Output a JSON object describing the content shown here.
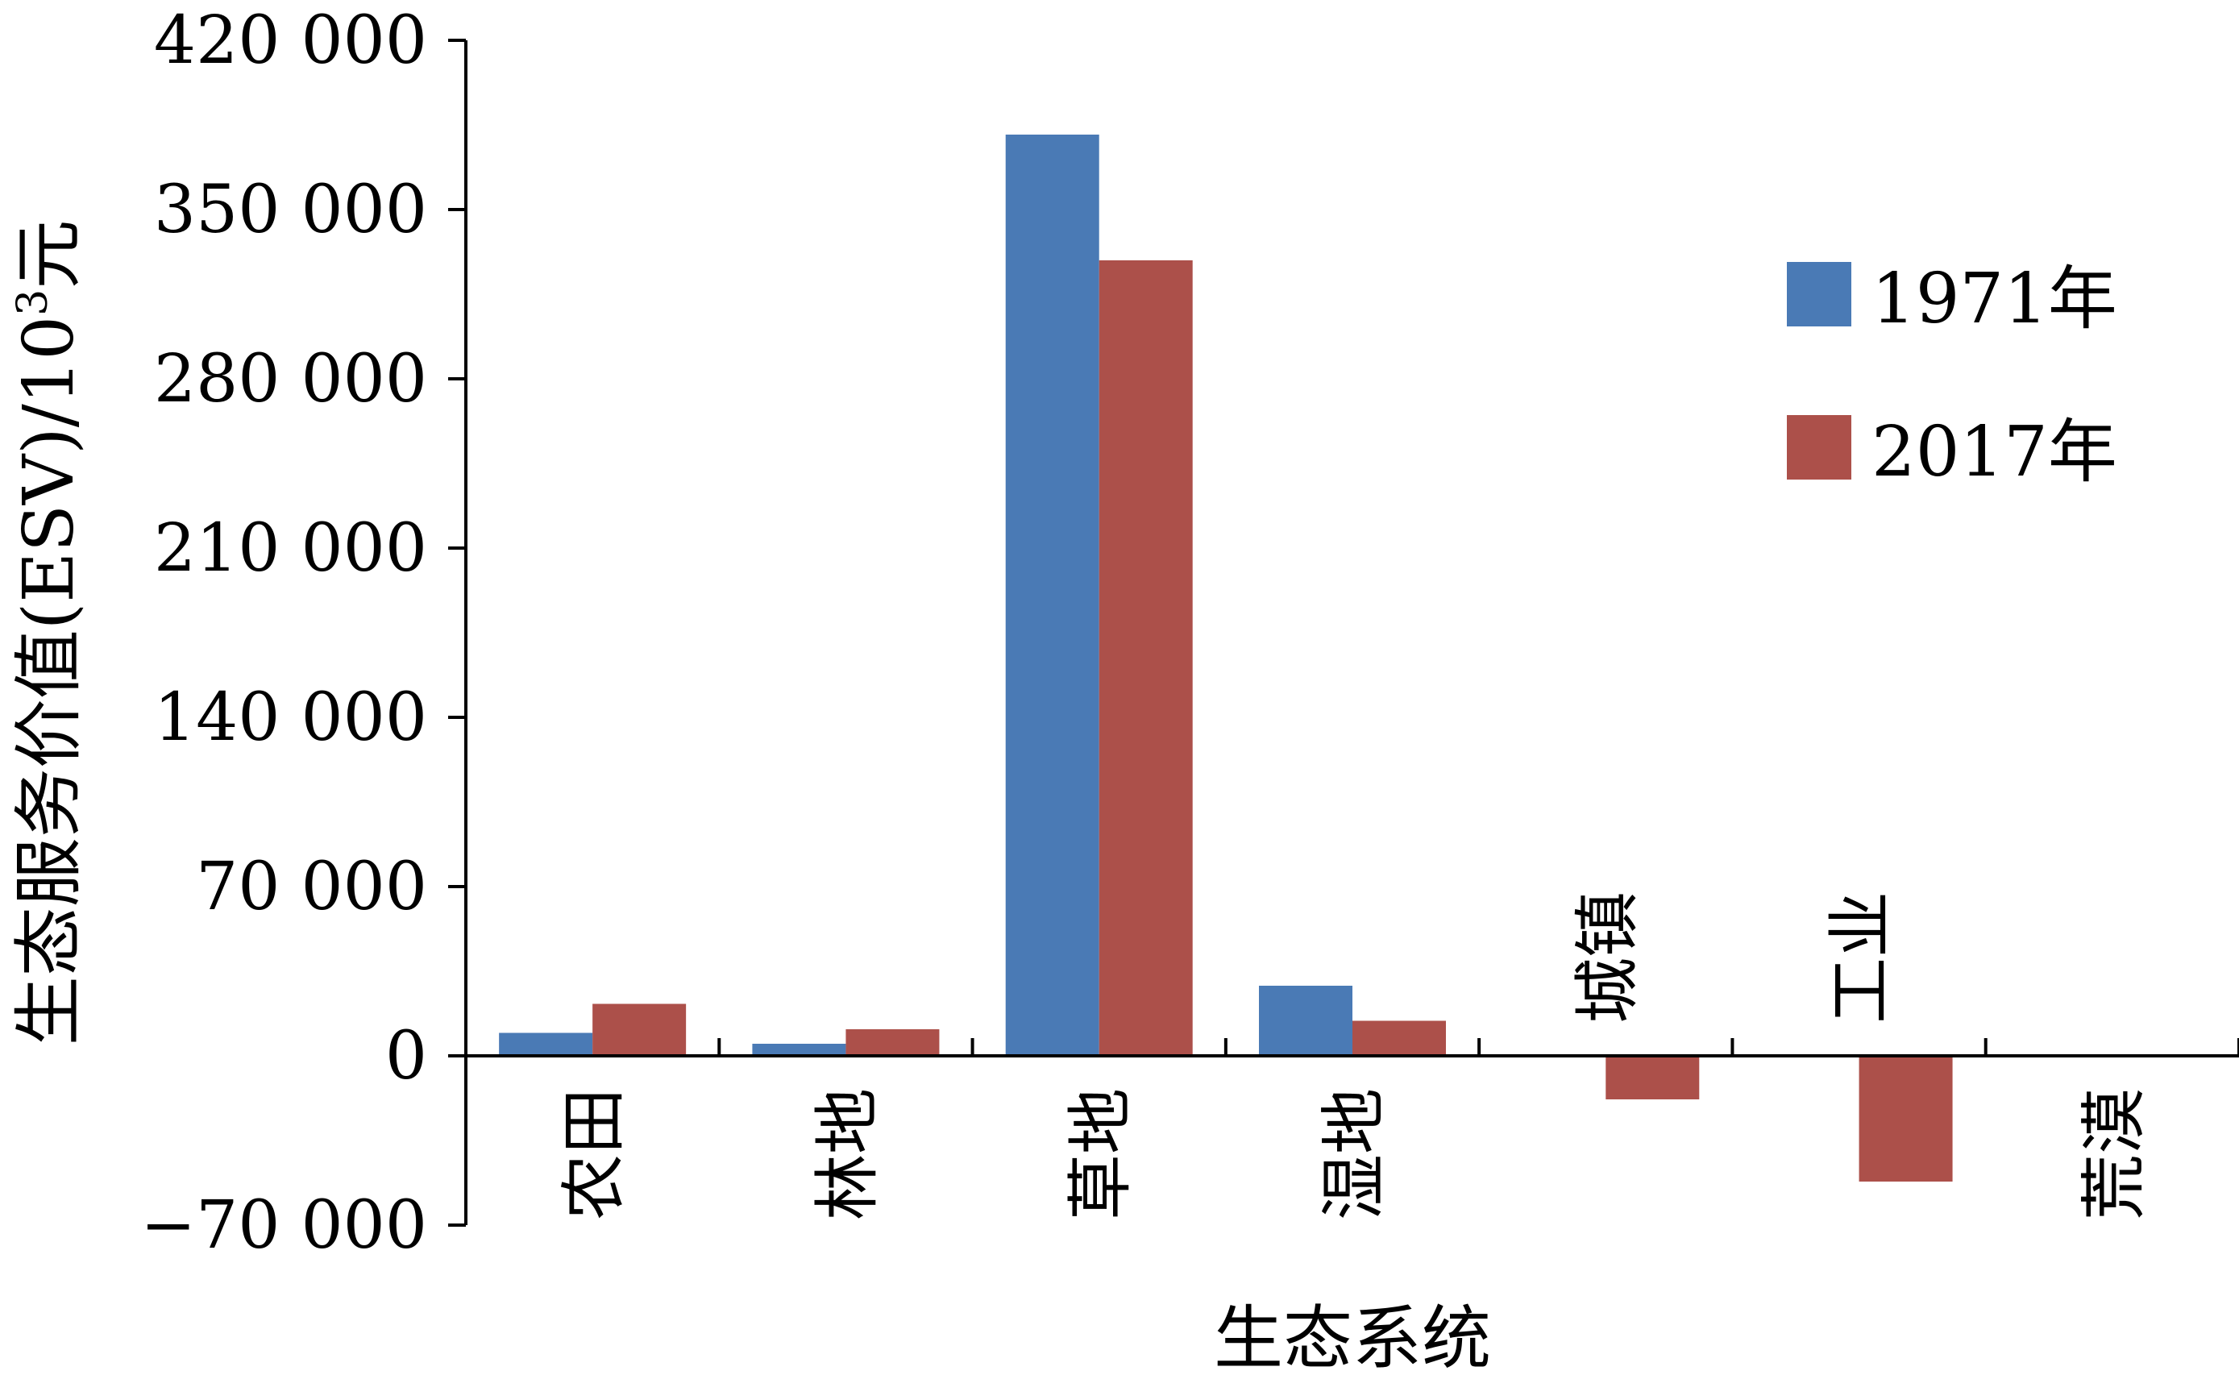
{
  "chart_data": {
    "type": "bar",
    "title": "",
    "xlabel": "生态系统",
    "ylabel": "生态服务价值(ESV)/10³元",
    "ylabel_parts": {
      "main": "生态服务价值(ESV)/10",
      "sup": "3",
      "unit": "元"
    },
    "ylim": [
      -70000,
      420000
    ],
    "yticks": [
      -70000,
      0,
      70000,
      140000,
      210000,
      280000,
      350000,
      420000
    ],
    "ytick_labels": [
      "−70 000",
      "0",
      "70 000",
      "140 000",
      "210 000",
      "280 000",
      "350 000",
      "420 000"
    ],
    "categories": [
      "农田",
      "林地",
      "草地",
      "湿地",
      "城镇",
      "工业",
      "荒漠"
    ],
    "category_label_side": [
      "below",
      "below",
      "below",
      "below",
      "above",
      "above",
      "below"
    ],
    "series": [
      {
        "name": "1971年",
        "color": "#4a7ab5",
        "values": [
          9500,
          5000,
          381000,
          29000,
          0,
          0,
          0
        ]
      },
      {
        "name": "2017年",
        "color": "#ac504a",
        "values": [
          21500,
          11000,
          329000,
          14500,
          -18000,
          -52000,
          0
        ]
      }
    ],
    "legend_position": "top-right",
    "grid": false
  }
}
